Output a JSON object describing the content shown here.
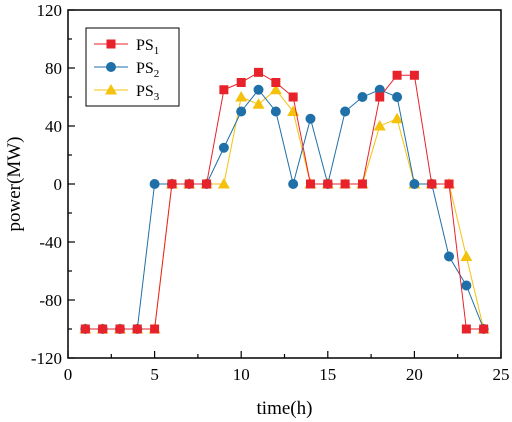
{
  "chart_data": {
    "type": "line",
    "xlabel": "time(h)",
    "ylabel": "power(MW)",
    "xlim": [
      0,
      25
    ],
    "ylim": [
      -120,
      120
    ],
    "xticks": [
      "0",
      "5",
      "10",
      "15",
      "20",
      "25"
    ],
    "yticks": [
      "-120",
      "-80",
      "-40",
      "0",
      "40",
      "80",
      "120"
    ],
    "grid": false,
    "legend_position": "top-left",
    "x": [
      1,
      2,
      3,
      4,
      5,
      6,
      7,
      8,
      9,
      10,
      11,
      12,
      13,
      14,
      15,
      16,
      17,
      18,
      19,
      20,
      21,
      22,
      23,
      24
    ],
    "series": [
      {
        "name": "PS",
        "name_sub": "1",
        "color": "#e8222a",
        "marker": "square",
        "values": [
          -100,
          -100,
          -100,
          -100,
          -100,
          0,
          0,
          0,
          65,
          70,
          77,
          70,
          60,
          0,
          0,
          0,
          0,
          60,
          75,
          75,
          0,
          0,
          -100,
          -100
        ]
      },
      {
        "name": "PS",
        "name_sub": "2",
        "color": "#1f6fa8",
        "marker": "circle",
        "values": [
          -100,
          -100,
          -100,
          -100,
          0,
          0,
          0,
          0,
          25,
          50,
          65,
          50,
          0,
          45,
          0,
          50,
          60,
          65,
          60,
          0,
          0,
          -50,
          -70,
          -100
        ]
      },
      {
        "name": "PS",
        "name_sub": "3",
        "color": "#f4c20d",
        "marker": "triangle",
        "values": [
          -100,
          -100,
          -100,
          -100,
          -100,
          0,
          0,
          0,
          0,
          60,
          55,
          65,
          50,
          0,
          0,
          0,
          0,
          40,
          45,
          0,
          0,
          0,
          -50,
          -100
        ]
      }
    ]
  }
}
